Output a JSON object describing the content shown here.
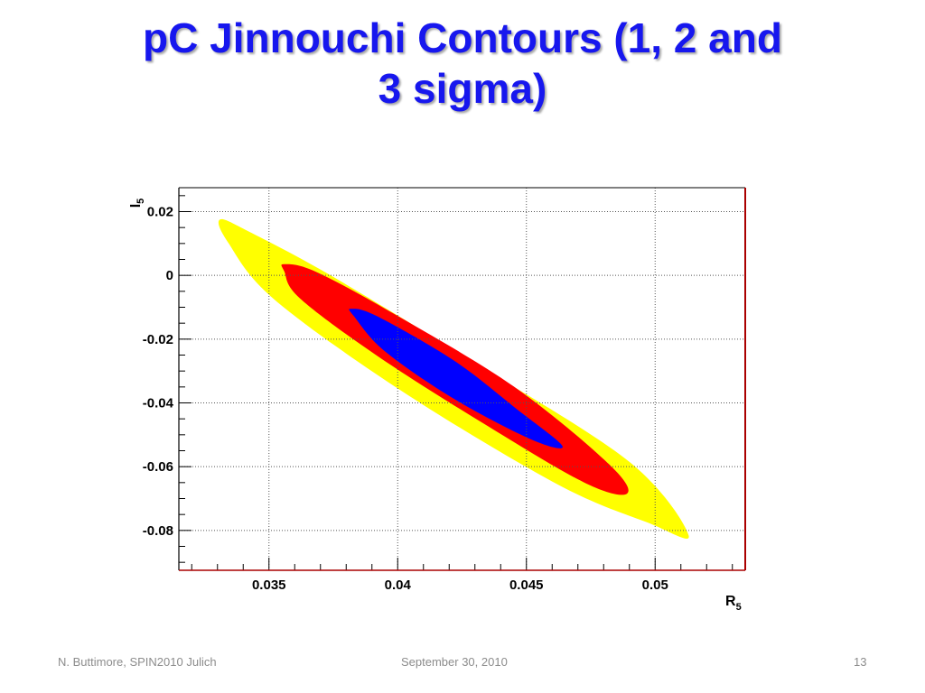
{
  "slide": {
    "title_line1": "pC Jinnouchi Contours (1, 2 and",
    "title_line2": "3 sigma)",
    "title_color": "#1717ee"
  },
  "footer": {
    "left": "N. Buttimore, SPIN2010 Julich",
    "center": "September 30, 2010",
    "right": "13"
  },
  "chart_data": {
    "type": "contour",
    "title": "",
    "xlabel": "R",
    "xlabel_sub": "5",
    "ylabel": "I",
    "ylabel_sub": "5",
    "xlim": [
      0.0315,
      0.0535
    ],
    "ylim": [
      -0.0925,
      0.0275
    ],
    "grid": true,
    "x_ticks": [
      0.035,
      0.04,
      0.045,
      0.05
    ],
    "x_tick_labels": [
      "0.035",
      "0.04",
      "0.045",
      "0.05"
    ],
    "y_ticks": [
      0.02,
      0,
      -0.02,
      -0.04,
      -0.06,
      -0.08
    ],
    "y_tick_labels": [
      "0.02",
      "0",
      "-0.02",
      "-0.04",
      "-0.06",
      "-0.08"
    ],
    "frame_right_color": "#aa0000",
    "contours": [
      {
        "name": "3 sigma",
        "color": "#ffff00",
        "points": [
          [
            0.0331,
            0.0175
          ],
          [
            0.0342,
            0.0138
          ],
          [
            0.0375,
            -0.0005
          ],
          [
            0.043,
            -0.0275
          ],
          [
            0.049,
            -0.0585
          ],
          [
            0.0513,
            -0.0815
          ],
          [
            0.0497,
            -0.0775
          ],
          [
            0.0462,
            -0.0655
          ],
          [
            0.0402,
            -0.0365
          ],
          [
            0.0352,
            -0.0075
          ],
          [
            0.0334,
            0.0105
          ]
        ]
      },
      {
        "name": "2 sigma",
        "color": "#ff0000",
        "points": [
          [
            0.0356,
            0.0035
          ],
          [
            0.0368,
            0.0012
          ],
          [
            0.0398,
            -0.0118
          ],
          [
            0.0445,
            -0.0348
          ],
          [
            0.0482,
            -0.0592
          ],
          [
            0.0489,
            -0.0685
          ],
          [
            0.0472,
            -0.0648
          ],
          [
            0.0432,
            -0.0458
          ],
          [
            0.0392,
            -0.0252
          ],
          [
            0.0362,
            -0.0072
          ],
          [
            0.0356,
            0.0012
          ]
        ]
      },
      {
        "name": "1 sigma",
        "color": "#0000ff",
        "points": [
          [
            0.0382,
            -0.0105
          ],
          [
            0.0392,
            -0.0128
          ],
          [
            0.0422,
            -0.0268
          ],
          [
            0.0446,
            -0.0418
          ],
          [
            0.0464,
            -0.0535
          ],
          [
            0.0452,
            -0.0515
          ],
          [
            0.0422,
            -0.0388
          ],
          [
            0.0395,
            -0.0238
          ],
          [
            0.0383,
            -0.0128
          ]
        ]
      }
    ]
  }
}
